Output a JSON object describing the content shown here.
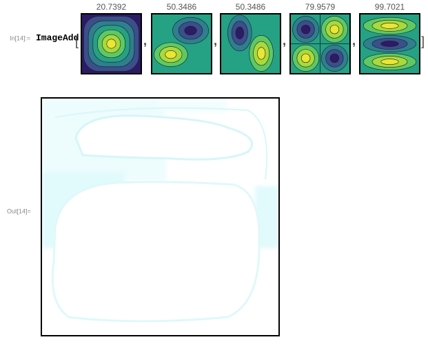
{
  "input": {
    "label": "In[14]:=",
    "function": "ImageAdd"
  },
  "images": [
    {
      "label": 20.7392
    },
    {
      "label": 50.3486
    },
    {
      "label": 50.3486
    },
    {
      "label": 79.9579
    },
    {
      "label": 99.7021
    }
  ],
  "output": {
    "label": "Out[14]="
  }
}
